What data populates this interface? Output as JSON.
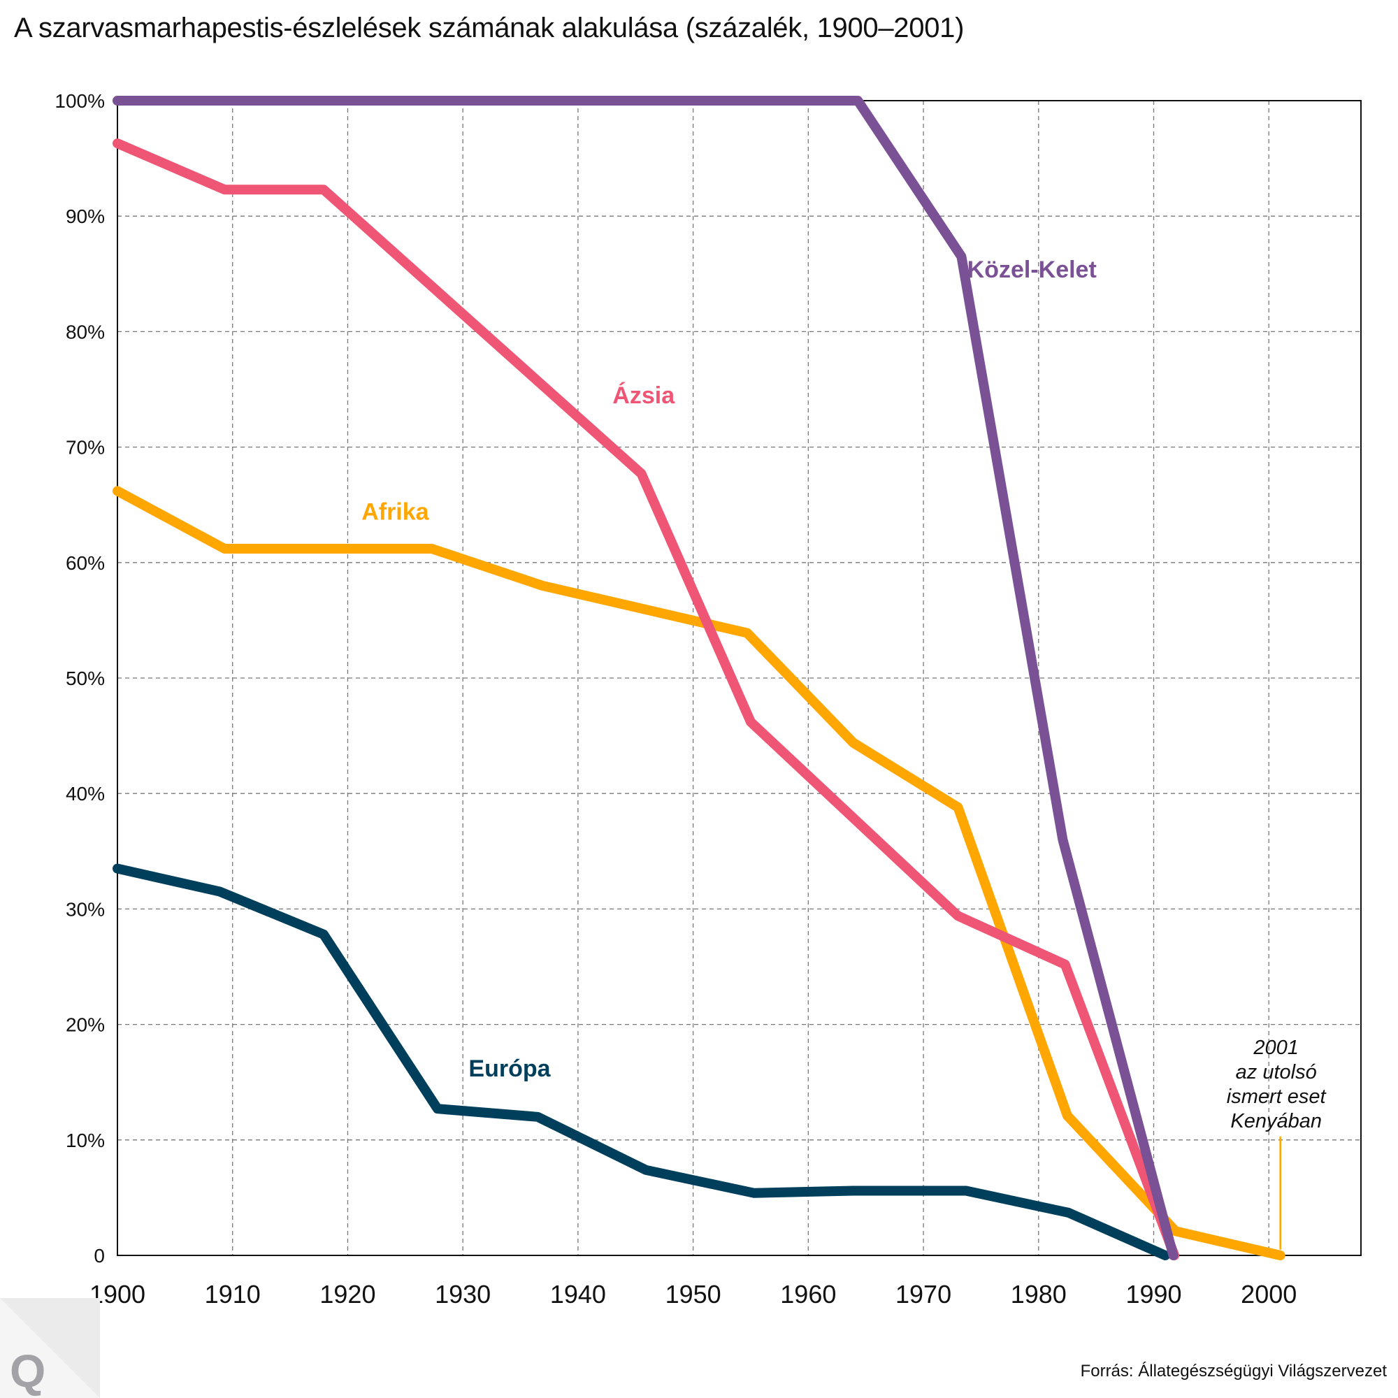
{
  "chart_data": {
    "type": "line",
    "title": "A szarvasmarhapestis-észlelések számának alakulása (százalék, 1900–2001)",
    "xlabel": "",
    "ylabel": "",
    "xlim": [
      1900,
      2008
    ],
    "ylim": [
      0,
      100
    ],
    "grid": true,
    "legend": "inline labels",
    "x_ticks": [
      {
        "value": 1900,
        "label": "1900"
      },
      {
        "value": 1910,
        "label": "1910"
      },
      {
        "value": 1920,
        "label": "1920"
      },
      {
        "value": 1930,
        "label": "1930"
      },
      {
        "value": 1940,
        "label": "1940"
      },
      {
        "value": 1950,
        "label": "1950"
      },
      {
        "value": 1960,
        "label": "1960"
      },
      {
        "value": 1970,
        "label": "1970"
      },
      {
        "value": 1980,
        "label": "1980"
      },
      {
        "value": 1990,
        "label": "1990"
      },
      {
        "value": 2000,
        "label": "2000"
      }
    ],
    "y_ticks": [
      {
        "value": 0,
        "label": "0"
      },
      {
        "value": 10,
        "label": "10%"
      },
      {
        "value": 20,
        "label": "20%"
      },
      {
        "value": 30,
        "label": "30%"
      },
      {
        "value": 40,
        "label": "40%"
      },
      {
        "value": 50,
        "label": "50%"
      },
      {
        "value": 60,
        "label": "60%"
      },
      {
        "value": 70,
        "label": "70%"
      },
      {
        "value": 80,
        "label": "80%"
      },
      {
        "value": 90,
        "label": "90%"
      },
      {
        "value": 100,
        "label": "100%"
      }
    ],
    "series": [
      {
        "name": "Közel-Kelet",
        "color": "#7a5195",
        "label_pos": {
          "x": 1973.8,
          "y": 84.7
        },
        "points": [
          [
            1900,
            100
          ],
          [
            1964.3,
            100
          ],
          [
            1973.3,
            86.5
          ],
          [
            1982.1,
            36
          ],
          [
            1991.7,
            0
          ]
        ]
      },
      {
        "name": "Ázsia",
        "color": "#ef5675",
        "label_pos": {
          "x": 1943,
          "y": 73.8
        },
        "points": [
          [
            1900,
            96.3
          ],
          [
            1909.3,
            92.3
          ],
          [
            1917.9,
            92.3
          ],
          [
            1945.5,
            67.7
          ],
          [
            1955,
            46.2
          ],
          [
            1973,
            29.4
          ],
          [
            1982.3,
            25.2
          ],
          [
            1991.8,
            0
          ]
        ]
      },
      {
        "name": "Afrika",
        "color": "#ffa600",
        "label_pos": {
          "x": 1921.2,
          "y": 63.7
        },
        "points": [
          [
            1900,
            66.2
          ],
          [
            1909.3,
            61.2
          ],
          [
            1927.3,
            61.2
          ],
          [
            1936.9,
            58
          ],
          [
            1954.7,
            53.9
          ],
          [
            1963.9,
            44.4
          ],
          [
            1973,
            38.8
          ],
          [
            1982.5,
            12.1
          ],
          [
            1991.9,
            2.1
          ],
          [
            2001,
            0
          ]
        ]
      },
      {
        "name": "Európa",
        "color": "#003f5c",
        "label_pos": {
          "x": 1930.5,
          "y": 15.5
        },
        "points": [
          [
            1900,
            33.5
          ],
          [
            1908.9,
            31.5
          ],
          [
            1917.9,
            27.8
          ],
          [
            1927.8,
            12.7
          ],
          [
            1936.5,
            12
          ],
          [
            1945.9,
            7.4
          ],
          [
            1955.3,
            5.4
          ],
          [
            1963.9,
            5.6
          ],
          [
            1973.7,
            5.6
          ],
          [
            1982.6,
            3.7
          ],
          [
            1991,
            0
          ]
        ]
      }
    ],
    "annotations": [
      {
        "x": 2001,
        "y_from": 0.5,
        "y_to": 10.3,
        "color": "#ffa600",
        "lines": [
          "2001",
          "az utolsó",
          "ismert eset",
          "Kenyában"
        ]
      }
    ]
  },
  "footer": {
    "source": "Forrás: Állategészségügyi Világszervezet",
    "logo_letter": "Q"
  }
}
